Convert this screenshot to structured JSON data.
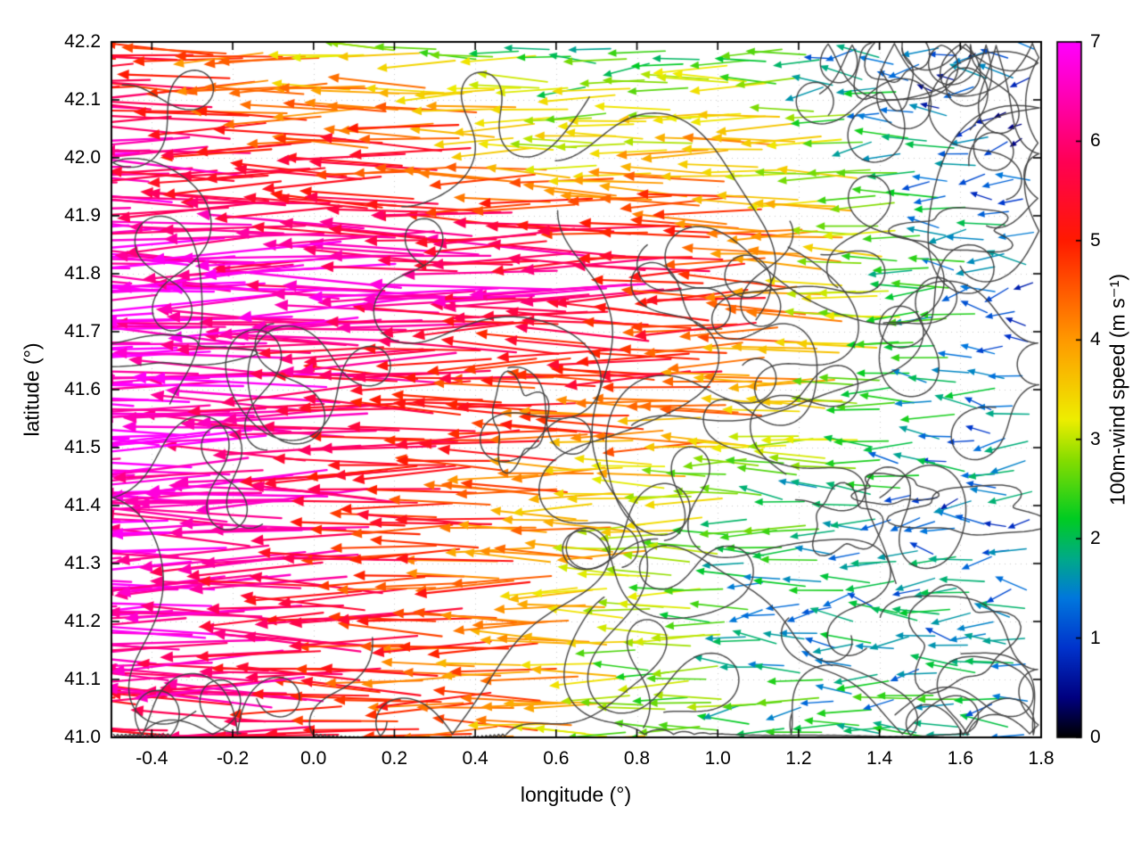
{
  "chart_data": {
    "type": "quiver",
    "title": "",
    "xlabel": "longitude (°)",
    "ylabel": "latitude (°)",
    "xlim": [
      -0.5,
      1.8
    ],
    "ylim": [
      41.0,
      42.2
    ],
    "xticks": [
      -0.4,
      -0.2,
      0.0,
      0.2,
      0.4,
      0.6,
      0.8,
      1.0,
      1.2,
      1.4,
      1.6,
      1.8
    ],
    "xtick_labels": [
      "-0.4",
      "-0.2",
      "0.0",
      "0.2",
      "0.4",
      "0.6",
      "0.8",
      "1.0",
      "1.2",
      "1.4",
      "1.6",
      "1.8"
    ],
    "yticks": [
      41.0,
      41.1,
      41.2,
      41.3,
      41.4,
      41.5,
      41.6,
      41.7,
      41.8,
      41.9,
      42.0,
      42.1,
      42.2
    ],
    "ytick_labels": [
      "41.0",
      "41.1",
      "41.2",
      "41.3",
      "41.4",
      "41.5",
      "41.6",
      "41.7",
      "41.8",
      "41.9",
      "42.0",
      "42.1",
      "42.2"
    ],
    "grid": "dotted",
    "colorbar": {
      "label": "100m-wind speed (m s⁻¹)",
      "min": 0,
      "max": 7,
      "ticks": [
        0,
        1,
        2,
        3,
        4,
        5,
        6,
        7
      ],
      "tick_labels": [
        "0",
        "1",
        "2",
        "3",
        "4",
        "5",
        "6",
        "7"
      ],
      "stops": [
        [
          0.0,
          "#000000"
        ],
        [
          0.4,
          "#000080"
        ],
        [
          0.9,
          "#0033cc"
        ],
        [
          1.4,
          "#0077dd"
        ],
        [
          1.8,
          "#00aa88"
        ],
        [
          2.2,
          "#00cc22"
        ],
        [
          2.8,
          "#88dd00"
        ],
        [
          3.2,
          "#eeee00"
        ],
        [
          4.0,
          "#ff9900"
        ],
        [
          5.0,
          "#ff1a00"
        ],
        [
          5.8,
          "#ff0055"
        ],
        [
          6.5,
          "#ff00bb"
        ],
        [
          7.0,
          "#ff00ff"
        ]
      ]
    },
    "wind": {
      "predominant_direction": "westward (arrows point toward negative longitude)",
      "speed_units": "m s⁻¹",
      "arrow_length": "proportional to wind speed",
      "arrow_color": "mapped to wind speed via colorbar"
    },
    "speed_grid": {
      "description": "100m wind speed (m/s) sampled on a coarse lon/lat grid, read from arrow colors",
      "lons": [
        -0.5,
        -0.3,
        -0.1,
        0.1,
        0.3,
        0.5,
        0.7,
        0.9,
        1.1,
        1.3,
        1.5,
        1.8
      ],
      "lats": [
        41.0,
        41.2,
        41.4,
        41.6,
        41.8,
        42.0,
        42.2
      ],
      "speeds": [
        [
          5.0,
          5.5,
          6.0,
          5.5,
          4.8,
          4.2,
          3.5,
          2.6,
          2.4,
          2.0,
          2.0,
          1.8
        ],
        [
          6.8,
          6.6,
          6.2,
          5.6,
          5.0,
          4.6,
          3.8,
          2.6,
          2.0,
          1.6,
          1.5,
          1.4
        ],
        [
          7.0,
          7.0,
          6.6,
          6.0,
          5.2,
          4.6,
          4.0,
          3.0,
          2.4,
          1.8,
          1.4,
          1.2
        ],
        [
          7.0,
          7.0,
          6.8,
          6.2,
          5.6,
          5.2,
          4.8,
          5.0,
          4.4,
          3.4,
          2.0,
          1.4
        ],
        [
          7.0,
          7.0,
          6.8,
          6.6,
          6.2,
          6.4,
          6.2,
          6.0,
          5.0,
          3.8,
          2.4,
          1.2
        ],
        [
          6.6,
          6.2,
          5.6,
          5.0,
          5.2,
          4.4,
          3.4,
          3.6,
          4.0,
          3.0,
          1.6,
          0.9
        ],
        [
          5.2,
          4.6,
          4.0,
          3.4,
          3.0,
          2.6,
          2.2,
          2.4,
          2.2,
          1.5,
          1.0,
          0.7
        ]
      ]
    },
    "contours": {
      "color": "#3d3d3d",
      "style": "terrain/orography contour squiggles overlaid on vector field"
    },
    "field": {
      "grid_dlon": 0.047,
      "grid_dlat": 0.0505,
      "jitter": 0.016,
      "noise_amp": 0.7,
      "seed": 7
    }
  }
}
